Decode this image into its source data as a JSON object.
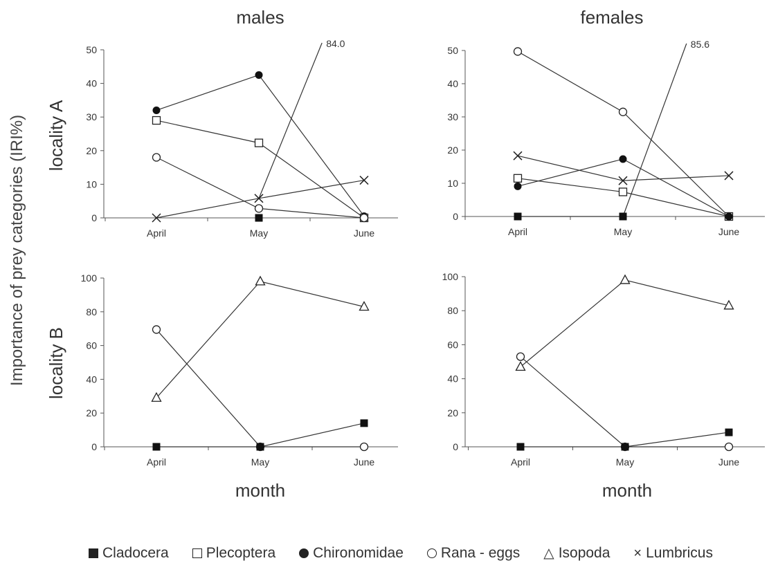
{
  "columns": [
    "males",
    "females"
  ],
  "rows": [
    "locality A",
    "locality B"
  ],
  "y_axis_label": "Importance of prey categories (IRI%)",
  "x_axis_label": "month",
  "legend": [
    {
      "key": "cladocera",
      "label": "Cladocera",
      "marker": "filled-square"
    },
    {
      "key": "plecoptera",
      "label": "Plecoptera",
      "marker": "open-square"
    },
    {
      "key": "chironomidae",
      "label": "Chironomidae",
      "marker": "filled-circle"
    },
    {
      "key": "rana",
      "label": "Rana - eggs",
      "marker": "open-circle"
    },
    {
      "key": "isopoda",
      "label": "Isopoda",
      "marker": "open-triangle"
    },
    {
      "key": "lumbricus",
      "label": "Lumbricus",
      "marker": "cross"
    }
  ],
  "chart_data": [
    {
      "type": "line",
      "panel": "males-locality-A",
      "title": "males",
      "row_label": "locality A",
      "categories": [
        "April",
        "May",
        "June"
      ],
      "ylim": [
        0,
        50
      ],
      "yticks": [
        0,
        10,
        20,
        30,
        40,
        50
      ],
      "series": [
        {
          "name": "Chironomidae",
          "values": [
            32,
            42.5,
            0.5
          ]
        },
        {
          "name": "Plecoptera",
          "values": [
            29,
            22.3,
            0
          ]
        },
        {
          "name": "Rana - eggs",
          "values": [
            18,
            2.8,
            0
          ]
        },
        {
          "name": "Lumbricus",
          "values": [
            0,
            5.8,
            11.2
          ]
        },
        {
          "name": "Cladocera",
          "values": [
            null,
            0,
            null
          ]
        }
      ],
      "annotations": [
        {
          "text": "84.0",
          "x": "June",
          "value": 84.0
        }
      ]
    },
    {
      "type": "line",
      "panel": "females-locality-A",
      "title": "females",
      "row_label": "",
      "categories": [
        "April",
        "May",
        "June"
      ],
      "ylim": [
        0,
        50
      ],
      "yticks": [
        0,
        10,
        20,
        30,
        40,
        50
      ],
      "series": [
        {
          "name": "Rana - eggs",
          "values": [
            49.7,
            31.5,
            0
          ]
        },
        {
          "name": "Lumbricus",
          "values": [
            18.3,
            10.8,
            12.3
          ]
        },
        {
          "name": "Plecoptera",
          "values": [
            11.5,
            7.4,
            0
          ]
        },
        {
          "name": "Chironomidae",
          "values": [
            9.1,
            17.3,
            0
          ]
        },
        {
          "name": "Cladocera",
          "values": [
            0,
            0,
            null
          ]
        }
      ],
      "annotations": [
        {
          "text": "85.6",
          "x": "June",
          "value": 85.6
        }
      ]
    },
    {
      "type": "line",
      "panel": "males-locality-B",
      "title": "",
      "row_label": "locality B",
      "categories": [
        "April",
        "May",
        "June"
      ],
      "ylim": [
        0,
        100
      ],
      "yticks": [
        0,
        20,
        40,
        60,
        80,
        100
      ],
      "series": [
        {
          "name": "Isopoda",
          "values": [
            29,
            98,
            83
          ]
        },
        {
          "name": "Rana - eggs",
          "values": [
            69.5,
            0,
            0
          ]
        },
        {
          "name": "Cladocera",
          "values": [
            0,
            0,
            14
          ]
        }
      ]
    },
    {
      "type": "line",
      "panel": "females-locality-B",
      "title": "",
      "row_label": "",
      "categories": [
        "April",
        "May",
        "June"
      ],
      "ylim": [
        0,
        100
      ],
      "yticks": [
        0,
        20,
        40,
        60,
        80,
        100
      ],
      "series": [
        {
          "name": "Isopoda",
          "values": [
            47,
            98,
            83
          ]
        },
        {
          "name": "Rana - eggs",
          "values": [
            53,
            0,
            0
          ]
        },
        {
          "name": "Cladocera",
          "values": [
            0,
            0,
            8.5
          ]
        }
      ]
    }
  ]
}
